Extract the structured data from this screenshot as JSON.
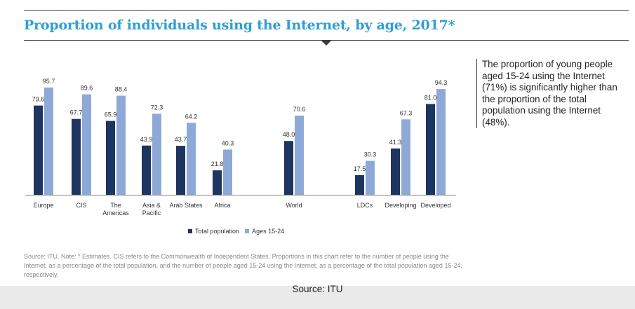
{
  "title": "Proportion of individuals using the Internet, by age, 2017*",
  "callout": "The proportion of young people aged 15-24 using the Internet (71%) is significantly higher than the proportion of the total population using the Internet (48%).",
  "footnote": "Source: ITU. Note: * Estimates. CIS refers to the Commonwealth of Independent States. Proportions in this chart refer to the number of people using the Internet, as a percentage of the total population, and the number of people aged 15-24 using the Internet, as a percentage of the total population aged 15-24, respectively.",
  "source": "Source: ITU",
  "legend": {
    "total": "Total population",
    "youth": "Ages 15-24"
  },
  "colors": {
    "total": "#1e3461",
    "youth": "#8ea9d8",
    "title": "#2f9fd3"
  },
  "chart_data": {
    "type": "bar",
    "categories": [
      "Europe",
      "CIS",
      "The Americas",
      "Asia & Pacific",
      "Arab States",
      "Africa",
      "World",
      "LDCs",
      "Developing",
      "Developed"
    ],
    "category_lines": [
      [
        "Europe"
      ],
      [
        "CIS"
      ],
      [
        "The",
        "Americas"
      ],
      [
        "Asia &",
        "Pacific"
      ],
      [
        "Arab States"
      ],
      [
        "Africa"
      ],
      [
        "World"
      ],
      [
        "LDCs"
      ],
      [
        "Developing"
      ],
      [
        "Developed"
      ]
    ],
    "series": [
      {
        "name": "Total population",
        "values": [
          79.6,
          67.7,
          65.9,
          43.9,
          43.7,
          21.8,
          48.0,
          17.5,
          41.3,
          81.0
        ]
      },
      {
        "name": "Ages 15-24",
        "values": [
          95.7,
          89.6,
          88.4,
          72.3,
          64.2,
          40.3,
          70.6,
          30.3,
          67.3,
          94.3
        ]
      }
    ],
    "ylim": [
      0,
      100
    ],
    "grid": false,
    "legend_position": "bottom-center"
  }
}
